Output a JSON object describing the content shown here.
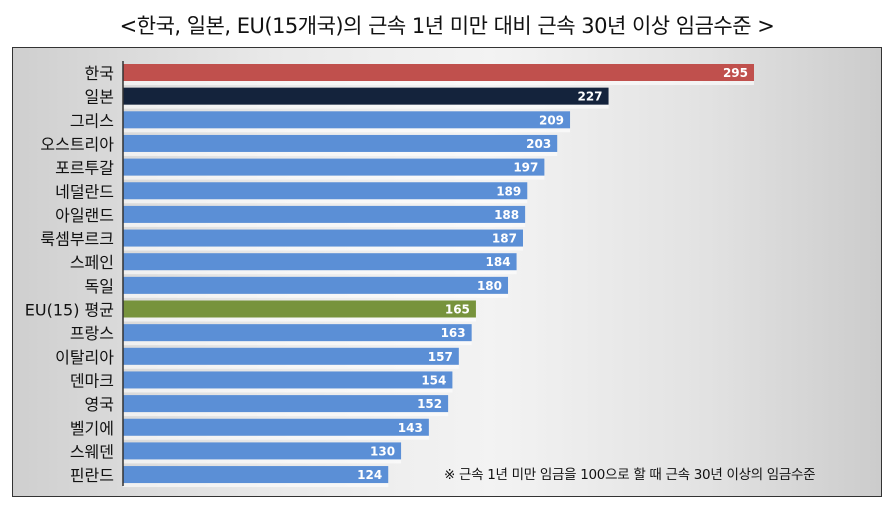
{
  "title": "<한국, 일본, EU(15개국)의 근속 1년 미만 대비 근속 30년 이상 임금수준 >",
  "chart_data": {
    "type": "bar",
    "orientation": "horizontal",
    "title": "<한국, 일본, EU(15개국)의 근속 1년 미만 대비 근속 30년 이상 임금수준 >",
    "categories": [
      "한국",
      "일본",
      "그리스",
      "오스트리아",
      "포르투갈",
      "네덜란드",
      "아일랜드",
      "룩셈부르크",
      "스페인",
      "독일",
      "EU(15) 평균",
      "프랑스",
      "이탈리아",
      "덴마크",
      "영국",
      "벨기에",
      "스웨덴",
      "핀란드"
    ],
    "values": [
      295,
      227,
      209,
      203,
      197,
      189,
      188,
      187,
      184,
      180,
      165,
      163,
      157,
      154,
      152,
      143,
      130,
      124
    ],
    "colors": [
      "#c0504d",
      "#14233c",
      "#5b8fd6",
      "#5b8fd6",
      "#5b8fd6",
      "#5b8fd6",
      "#5b8fd6",
      "#5b8fd6",
      "#5b8fd6",
      "#5b8fd6",
      "#77933c",
      "#5b8fd6",
      "#5b8fd6",
      "#5b8fd6",
      "#5b8fd6",
      "#5b8fd6",
      "#5b8fd6",
      "#5b8fd6"
    ],
    "xlim": [
      0,
      295
    ],
    "grid": false,
    "data_labels": true,
    "note": "※ 근속 1년 미만 임금을 100으로 할 때 근속 30년 이상의 임금수준"
  }
}
